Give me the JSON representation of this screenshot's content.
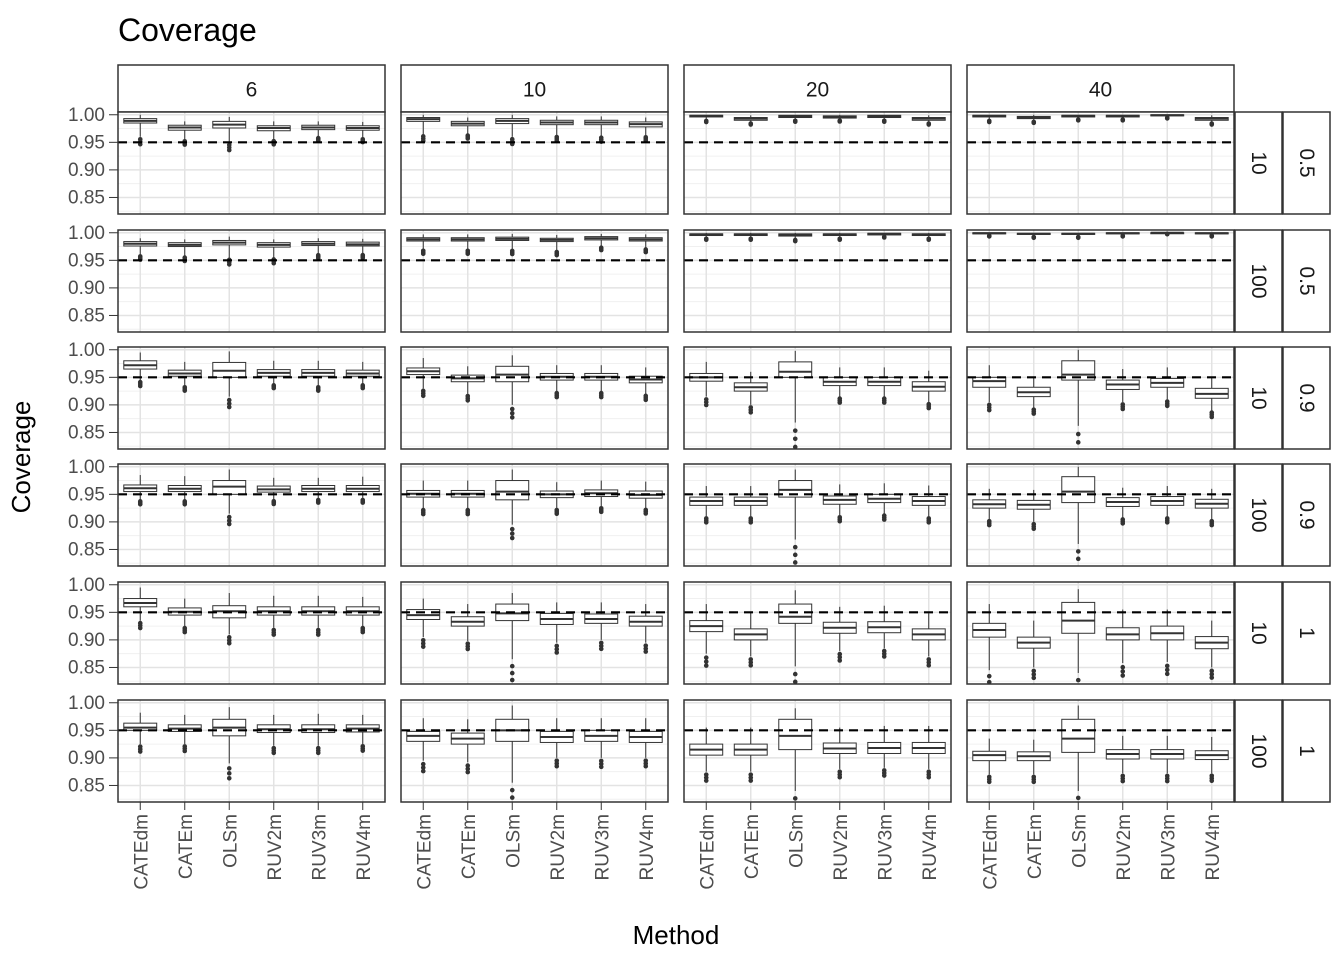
{
  "chart_data": {
    "type": "boxplot",
    "title": "Coverage",
    "xlabel": "Method",
    "ylabel": "Coverage",
    "ylim": [
      0.82,
      1.005
    ],
    "yticks": [
      0.85,
      0.9,
      0.95,
      1.0
    ],
    "ytick_labels": [
      "0.85",
      "0.90",
      "0.95",
      "1.00"
    ],
    "reference_line": 0.95,
    "grid": true,
    "methods": [
      "CATEdm",
      "CATEm",
      "OLSm",
      "RUV2m",
      "RUV3m",
      "RUV4m"
    ],
    "col_facets": [
      "6",
      "10",
      "20",
      "40"
    ],
    "row_facets": [
      {
        "inner": "10",
        "outer": "0.5"
      },
      {
        "inner": "100",
        "outer": "0.5"
      },
      {
        "inner": "10",
        "outer": "0.9"
      },
      {
        "inner": "100",
        "outer": "0.9"
      },
      {
        "inner": "10",
        "outer": "1"
      },
      {
        "inner": "100",
        "outer": "1"
      }
    ],
    "panels": [
      [
        [
          [
            0.96,
            0.985,
            0.989,
            0.993,
            1.0
          ],
          [
            0.955,
            0.972,
            0.977,
            0.981,
            0.988
          ],
          [
            0.95,
            0.976,
            0.982,
            0.988,
            0.996
          ],
          [
            0.955,
            0.971,
            0.976,
            0.98,
            0.988
          ],
          [
            0.96,
            0.973,
            0.977,
            0.981,
            0.988
          ],
          [
            0.958,
            0.972,
            0.976,
            0.98,
            0.987
          ]
        ],
        [
          [
            0.965,
            0.988,
            0.992,
            0.995,
            1.0
          ],
          [
            0.965,
            0.98,
            0.984,
            0.988,
            0.995
          ],
          [
            0.96,
            0.984,
            0.989,
            0.993,
            1.0
          ],
          [
            0.963,
            0.982,
            0.986,
            0.99,
            0.997
          ],
          [
            0.962,
            0.982,
            0.986,
            0.99,
            0.997
          ],
          [
            0.962,
            0.978,
            0.983,
            0.987,
            0.995
          ]
        ],
        [
          [
            0.99,
            0.996,
            0.998,
            0.999,
            1.0
          ],
          [
            0.985,
            0.99,
            0.993,
            0.995,
            0.999
          ],
          [
            0.99,
            0.995,
            0.997,
            0.999,
            1.0
          ],
          [
            0.99,
            0.994,
            0.996,
            0.998,
            1.0
          ],
          [
            0.99,
            0.995,
            0.997,
            0.999,
            1.0
          ],
          [
            0.985,
            0.99,
            0.993,
            0.995,
            0.999
          ]
        ],
        [
          [
            0.99,
            0.996,
            0.998,
            0.999,
            1.0
          ],
          [
            0.988,
            0.993,
            0.995,
            0.997,
            1.0
          ],
          [
            0.992,
            0.996,
            0.998,
            0.999,
            1.0
          ],
          [
            0.992,
            0.996,
            0.998,
            0.999,
            1.0
          ],
          [
            0.995,
            0.998,
            0.999,
            1.0,
            1.0
          ],
          [
            0.985,
            0.99,
            0.993,
            0.995,
            0.999
          ]
        ]
      ],
      [
        [
          [
            0.96,
            0.976,
            0.98,
            0.984,
            0.99
          ],
          [
            0.958,
            0.975,
            0.978,
            0.982,
            0.988
          ],
          [
            0.955,
            0.978,
            0.982,
            0.986,
            0.993
          ],
          [
            0.955,
            0.974,
            0.978,
            0.982,
            0.988
          ],
          [
            0.962,
            0.977,
            0.98,
            0.984,
            0.99
          ],
          [
            0.962,
            0.976,
            0.979,
            0.983,
            0.989
          ]
        ],
        [
          [
            0.97,
            0.985,
            0.988,
            0.991,
            0.997
          ],
          [
            0.97,
            0.985,
            0.988,
            0.991,
            0.997
          ],
          [
            0.97,
            0.986,
            0.989,
            0.992,
            0.998
          ],
          [
            0.968,
            0.984,
            0.987,
            0.99,
            0.996
          ],
          [
            0.975,
            0.987,
            0.99,
            0.993,
            0.998
          ],
          [
            0.972,
            0.985,
            0.988,
            0.991,
            0.997
          ]
        ],
        [
          [
            0.99,
            0.995,
            0.997,
            0.998,
            1.0
          ],
          [
            0.99,
            0.995,
            0.997,
            0.998,
            1.0
          ],
          [
            0.988,
            0.994,
            0.996,
            0.998,
            1.0
          ],
          [
            0.99,
            0.995,
            0.997,
            0.998,
            1.0
          ],
          [
            0.993,
            0.996,
            0.998,
            0.999,
            1.0
          ],
          [
            0.99,
            0.995,
            0.997,
            0.998,
            1.0
          ]
        ],
        [
          [
            0.995,
            0.998,
            0.999,
            1.0,
            1.0
          ],
          [
            0.993,
            0.997,
            0.998,
            0.999,
            1.0
          ],
          [
            0.993,
            0.997,
            0.998,
            0.999,
            1.0
          ],
          [
            0.995,
            0.998,
            0.999,
            1.0,
            1.0
          ],
          [
            0.998,
            0.999,
            1.0,
            1.0,
            1.0
          ],
          [
            0.995,
            0.998,
            0.999,
            1.0,
            1.0
          ]
        ]
      ],
      [
        [
          [
            0.945,
            0.965,
            0.972,
            0.98,
            0.995
          ],
          [
            0.935,
            0.952,
            0.957,
            0.963,
            0.978
          ],
          [
            0.915,
            0.95,
            0.962,
            0.977,
            0.997
          ],
          [
            0.938,
            0.952,
            0.958,
            0.964,
            0.98
          ],
          [
            0.935,
            0.952,
            0.958,
            0.964,
            0.98
          ],
          [
            0.938,
            0.952,
            0.957,
            0.963,
            0.978
          ]
        ],
        [
          [
            0.93,
            0.955,
            0.961,
            0.967,
            0.985
          ],
          [
            0.92,
            0.942,
            0.948,
            0.954,
            0.97
          ],
          [
            0.9,
            0.942,
            0.955,
            0.97,
            0.99
          ],
          [
            0.925,
            0.945,
            0.951,
            0.957,
            0.972
          ],
          [
            0.925,
            0.945,
            0.951,
            0.957,
            0.972
          ],
          [
            0.92,
            0.94,
            0.946,
            0.952,
            0.968
          ]
        ],
        [
          [
            0.915,
            0.943,
            0.95,
            0.957,
            0.978
          ],
          [
            0.9,
            0.925,
            0.932,
            0.94,
            0.96
          ],
          [
            0.868,
            0.95,
            0.96,
            0.978,
            0.998
          ],
          [
            0.915,
            0.935,
            0.942,
            0.95,
            0.968
          ],
          [
            0.915,
            0.935,
            0.942,
            0.95,
            0.968
          ],
          [
            0.905,
            0.925,
            0.933,
            0.942,
            0.962
          ]
        ],
        [
          [
            0.905,
            0.932,
            0.943,
            0.95,
            0.972
          ],
          [
            0.895,
            0.915,
            0.923,
            0.932,
            0.95
          ],
          [
            0.862,
            0.945,
            0.955,
            0.98,
            1.0
          ],
          [
            0.905,
            0.928,
            0.937,
            0.945,
            0.965
          ],
          [
            0.91,
            0.932,
            0.94,
            0.948,
            0.968
          ],
          [
            0.89,
            0.912,
            0.92,
            0.93,
            0.95
          ]
        ]
      ],
      [
        [
          [
            0.94,
            0.955,
            0.961,
            0.967,
            0.985
          ],
          [
            0.94,
            0.955,
            0.96,
            0.966,
            0.983
          ],
          [
            0.915,
            0.95,
            0.964,
            0.975,
            0.995
          ],
          [
            0.94,
            0.954,
            0.959,
            0.965,
            0.98
          ],
          [
            0.942,
            0.955,
            0.96,
            0.966,
            0.98
          ],
          [
            0.942,
            0.955,
            0.96,
            0.966,
            0.982
          ]
        ],
        [
          [
            0.925,
            0.945,
            0.951,
            0.957,
            0.975
          ],
          [
            0.925,
            0.945,
            0.951,
            0.957,
            0.975
          ],
          [
            0.895,
            0.94,
            0.955,
            0.975,
            0.995
          ],
          [
            0.925,
            0.944,
            0.95,
            0.956,
            0.972
          ],
          [
            0.928,
            0.946,
            0.952,
            0.958,
            0.975
          ],
          [
            0.925,
            0.943,
            0.949,
            0.956,
            0.973
          ]
        ],
        [
          [
            0.91,
            0.93,
            0.938,
            0.945,
            0.965
          ],
          [
            0.91,
            0.93,
            0.938,
            0.945,
            0.965
          ],
          [
            0.868,
            0.945,
            0.958,
            0.975,
            0.995
          ],
          [
            0.912,
            0.932,
            0.94,
            0.947,
            0.968
          ],
          [
            0.915,
            0.935,
            0.942,
            0.95,
            0.97
          ],
          [
            0.91,
            0.93,
            0.938,
            0.946,
            0.966
          ]
        ],
        [
          [
            0.905,
            0.925,
            0.932,
            0.94,
            0.96
          ],
          [
            0.9,
            0.923,
            0.931,
            0.939,
            0.958
          ],
          [
            0.86,
            0.935,
            0.955,
            0.982,
            1.0
          ],
          [
            0.908,
            0.928,
            0.936,
            0.944,
            0.962
          ],
          [
            0.91,
            0.93,
            0.938,
            0.946,
            0.965
          ],
          [
            0.905,
            0.925,
            0.933,
            0.941,
            0.96
          ]
        ]
      ],
      [
        [
          [
            0.935,
            0.96,
            0.967,
            0.975,
            0.995
          ],
          [
            0.925,
            0.945,
            0.951,
            0.958,
            0.975
          ],
          [
            0.91,
            0.94,
            0.952,
            0.962,
            0.985
          ],
          [
            0.922,
            0.945,
            0.952,
            0.96,
            0.98
          ],
          [
            0.922,
            0.945,
            0.952,
            0.96,
            0.98
          ],
          [
            0.925,
            0.945,
            0.952,
            0.96,
            0.978
          ]
        ],
        [
          [
            0.905,
            0.937,
            0.945,
            0.955,
            0.975
          ],
          [
            0.898,
            0.925,
            0.933,
            0.942,
            0.965
          ],
          [
            0.865,
            0.935,
            0.948,
            0.965,
            0.985
          ],
          [
            0.895,
            0.928,
            0.938,
            0.948,
            0.968
          ],
          [
            0.9,
            0.93,
            0.938,
            0.947,
            0.968
          ],
          [
            0.895,
            0.925,
            0.933,
            0.943,
            0.965
          ]
        ],
        [
          [
            0.875,
            0.915,
            0.925,
            0.935,
            0.965
          ],
          [
            0.87,
            0.9,
            0.91,
            0.92,
            0.95
          ],
          [
            0.852,
            0.93,
            0.942,
            0.965,
            0.99
          ],
          [
            0.88,
            0.912,
            0.922,
            0.932,
            0.96
          ],
          [
            0.885,
            0.913,
            0.923,
            0.933,
            0.962
          ],
          [
            0.87,
            0.9,
            0.91,
            0.92,
            0.948
          ]
        ],
        [
          [
            0.845,
            0.905,
            0.918,
            0.93,
            0.965
          ],
          [
            0.85,
            0.885,
            0.895,
            0.905,
            0.935
          ],
          [
            0.84,
            0.912,
            0.935,
            0.968,
            0.992
          ],
          [
            0.858,
            0.9,
            0.91,
            0.922,
            0.955
          ],
          [
            0.86,
            0.9,
            0.912,
            0.925,
            0.955
          ],
          [
            0.85,
            0.884,
            0.895,
            0.906,
            0.935
          ]
        ]
      ],
      [
        [
          [
            0.925,
            0.95,
            0.955,
            0.963,
            0.982
          ],
          [
            0.925,
            0.948,
            0.953,
            0.96,
            0.978
          ],
          [
            0.89,
            0.94,
            0.955,
            0.97,
            0.992
          ],
          [
            0.922,
            0.946,
            0.952,
            0.96,
            0.978
          ],
          [
            0.922,
            0.946,
            0.952,
            0.96,
            0.98
          ],
          [
            0.925,
            0.947,
            0.953,
            0.96,
            0.978
          ]
        ],
        [
          [
            0.895,
            0.93,
            0.94,
            0.948,
            0.972
          ],
          [
            0.892,
            0.925,
            0.935,
            0.945,
            0.97
          ],
          [
            0.855,
            0.93,
            0.95,
            0.97,
            0.995
          ],
          [
            0.9,
            0.928,
            0.938,
            0.948,
            0.972
          ],
          [
            0.9,
            0.93,
            0.94,
            0.95,
            0.972
          ],
          [
            0.9,
            0.928,
            0.938,
            0.948,
            0.972
          ]
        ],
        [
          [
            0.875,
            0.905,
            0.915,
            0.925,
            0.955
          ],
          [
            0.875,
            0.905,
            0.915,
            0.925,
            0.955
          ],
          [
            0.84,
            0.915,
            0.94,
            0.97,
            0.99
          ],
          [
            0.88,
            0.908,
            0.917,
            0.927,
            0.955
          ],
          [
            0.882,
            0.908,
            0.918,
            0.928,
            0.958
          ],
          [
            0.88,
            0.908,
            0.918,
            0.928,
            0.958
          ]
        ],
        [
          [
            0.87,
            0.895,
            0.905,
            0.912,
            0.935
          ],
          [
            0.87,
            0.895,
            0.903,
            0.911,
            0.933
          ],
          [
            0.84,
            0.91,
            0.935,
            0.97,
            0.995
          ],
          [
            0.872,
            0.898,
            0.907,
            0.915,
            0.94
          ],
          [
            0.872,
            0.898,
            0.907,
            0.915,
            0.94
          ],
          [
            0.872,
            0.897,
            0.905,
            0.913,
            0.938
          ]
        ]
      ]
    ]
  }
}
